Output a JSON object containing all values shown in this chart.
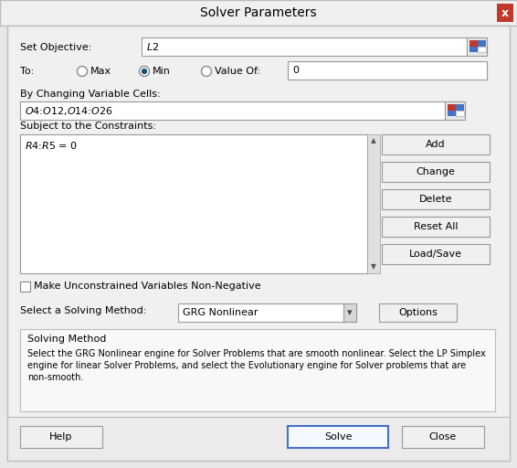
{
  "title": "Solver Parameters",
  "close_btn": "x",
  "bg_outer": "#e8e8e8",
  "bg_dialog": "#f0f0f0",
  "bg_white": "#ffffff",
  "bg_section": "#f5f5f5",
  "color_red": "#c0392b",
  "color_blue": "#4472c4",
  "border_dark": "#999999",
  "border_light": "#cccccc",
  "set_objective_label": "Set Objective:",
  "set_objective_value": "$L$2",
  "to_label": "To:",
  "max_label": "Max",
  "min_label": "Min",
  "value_of_label": "Value Of:",
  "value_of_value": "0",
  "changing_cells_label": "By Changing Variable Cells:",
  "changing_cells_value": "$O$4:$O$12,$O$14:$O$26",
  "constraints_label": "Subject to the Constraints:",
  "constraints_value": "$R$4:$R$5 = 0",
  "checkbox_label": "Make Unconstrained Variables Non-Negative",
  "solving_method_label": "Select a Solving Method:",
  "solving_method_value": "GRG Nonlinear",
  "solving_method_title": "Solving Method",
  "solving_method_desc1": "Select the GRG Nonlinear engine for Solver Problems that are smooth nonlinear. Select the LP Simplex",
  "solving_method_desc2": "engine for linear Solver Problems, and select the Evolutionary engine for Solver problems that are",
  "solving_method_desc3": "non-smooth.",
  "buttons_right": [
    "Add",
    "Change",
    "Delete",
    "Reset All",
    "Load/Save"
  ],
  "font_size": 8,
  "title_font_size": 10
}
